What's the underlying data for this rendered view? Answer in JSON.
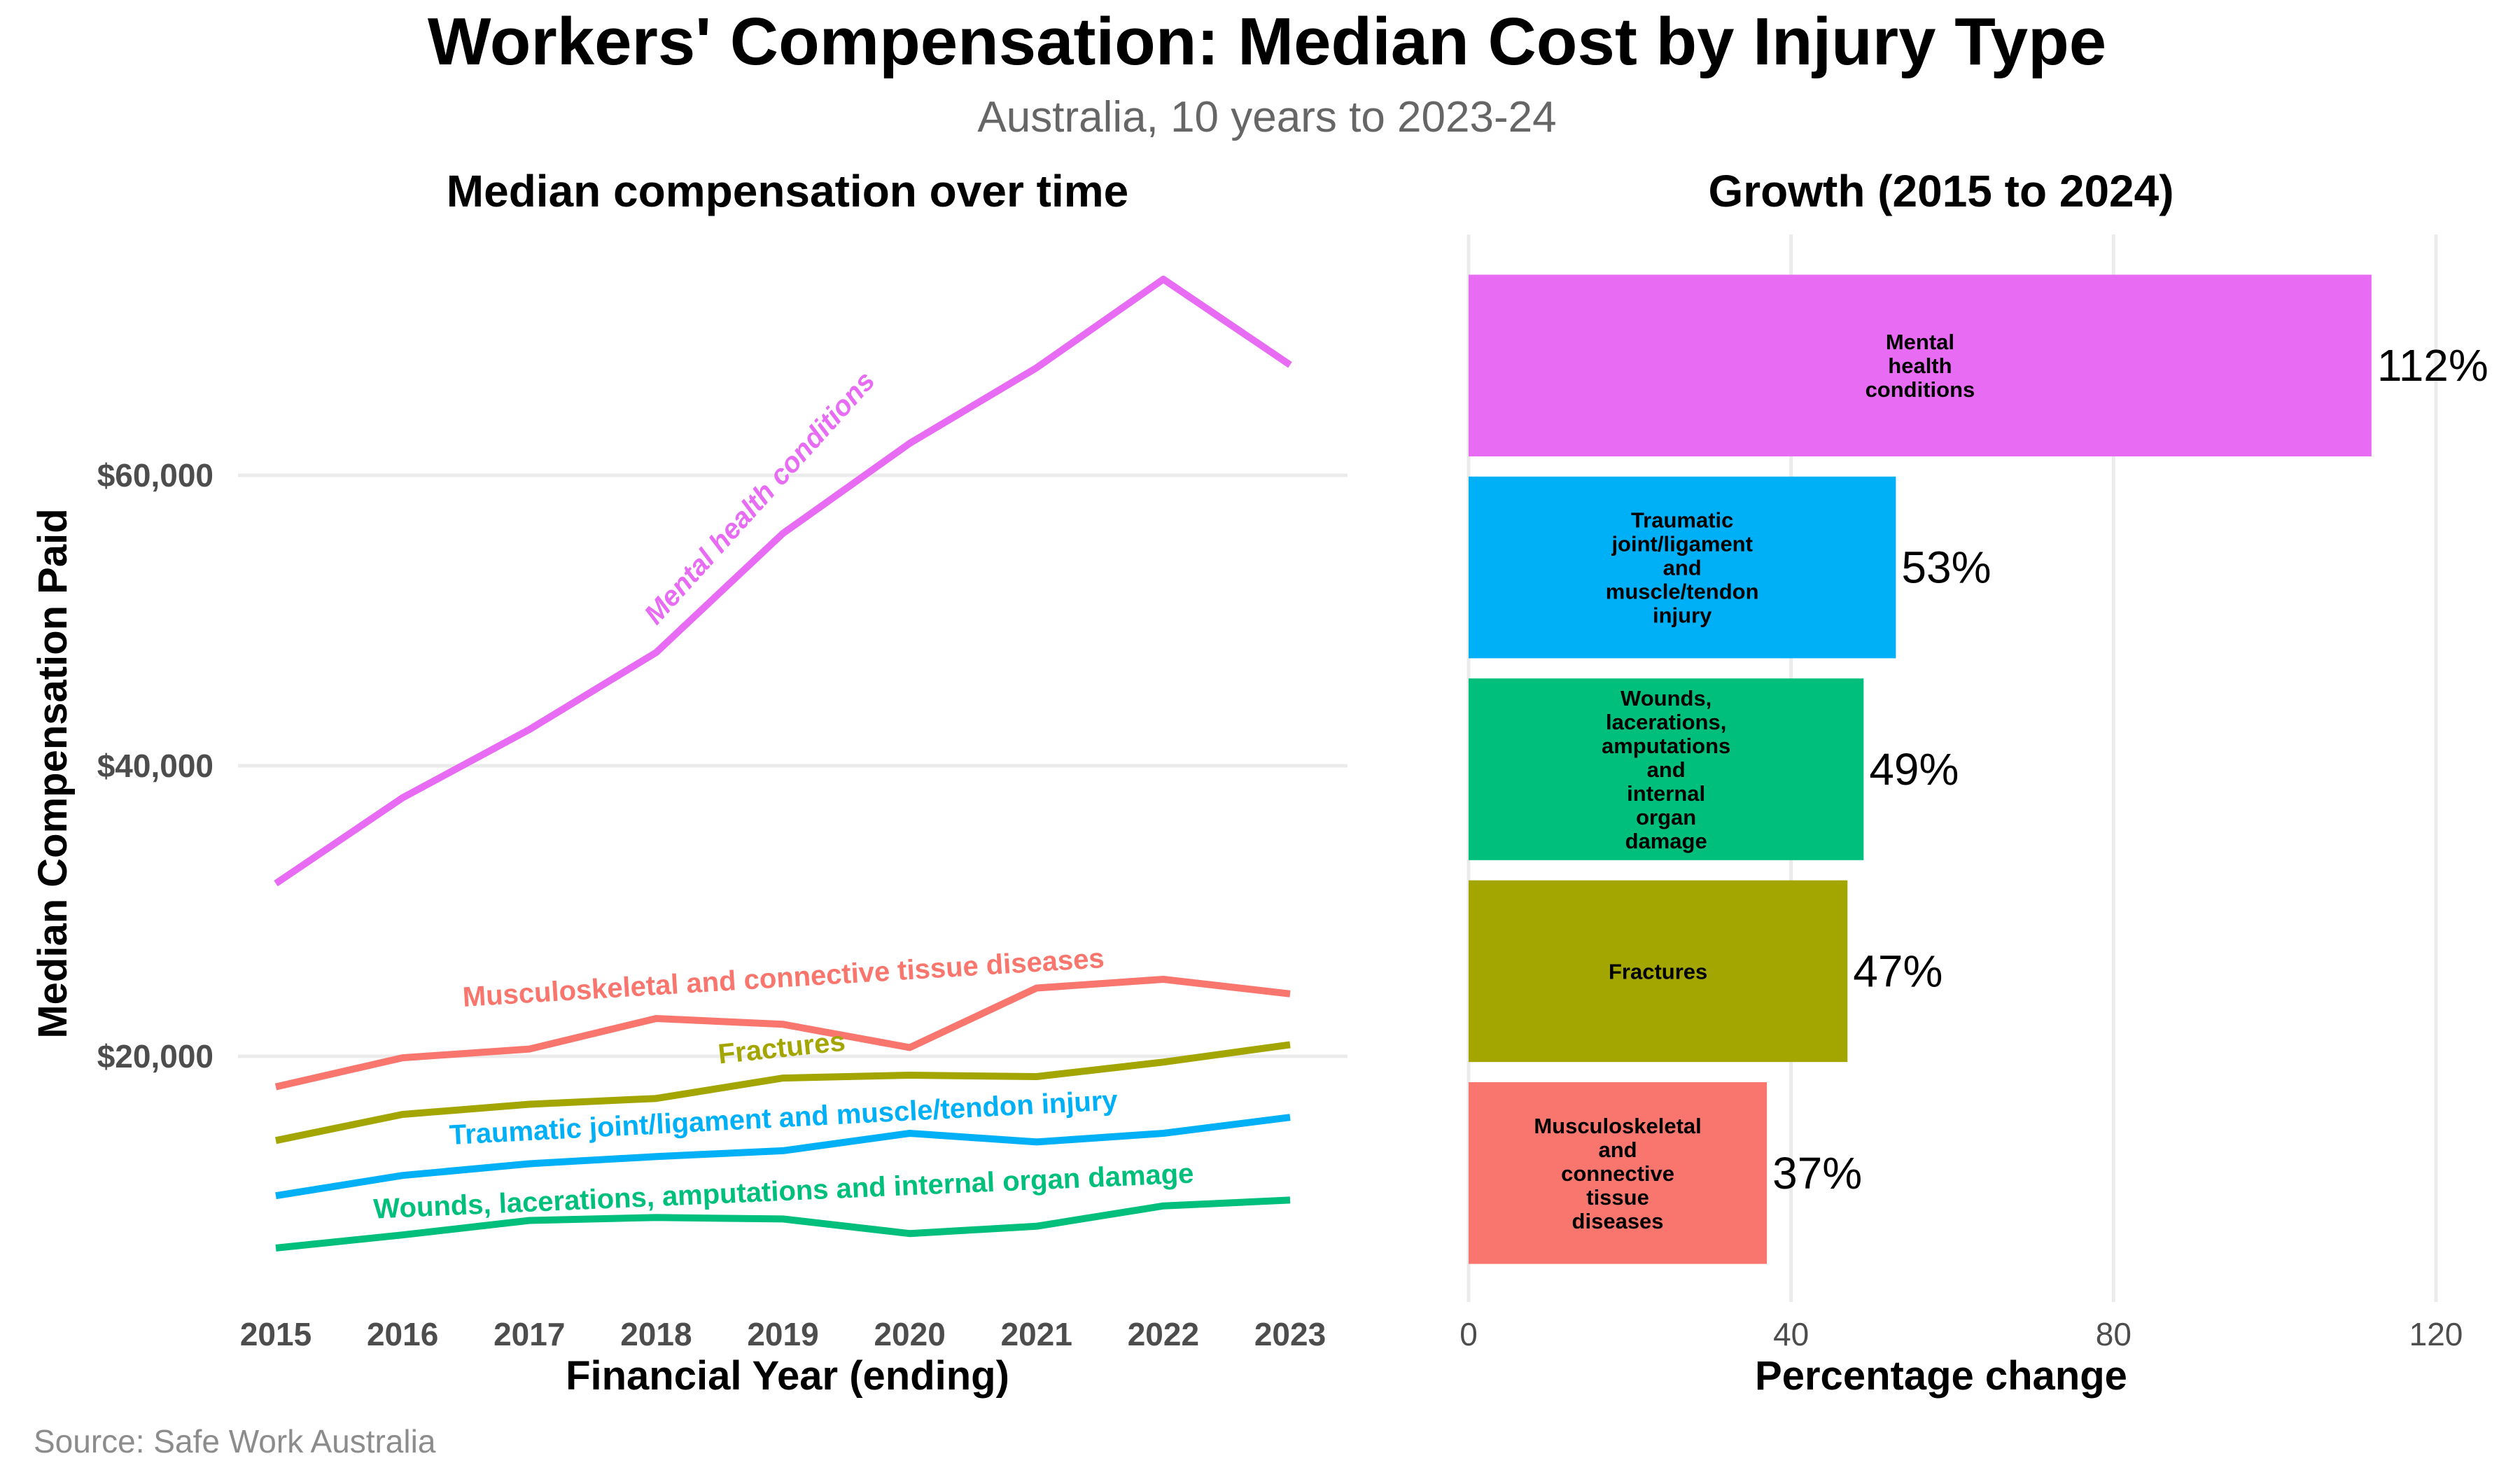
{
  "title": "Workers' Compensation: Median Cost by Injury Type",
  "subtitle": "Australia, 10 years to 2023-24",
  "caption": "Source: Safe Work Australia",
  "chart_data": [
    {
      "type": "line",
      "title": "Median compensation over time",
      "xlabel": "Financial Year (ending)",
      "ylabel": "Median Compensation Paid",
      "x": [
        2015,
        2016,
        2017,
        2018,
        2019,
        2020,
        2021,
        2022,
        2023
      ],
      "x_tick_labels": [
        "2015",
        "2016",
        "2017",
        "2018",
        "2019",
        "2020",
        "2021",
        "2022",
        "2023"
      ],
      "y_ticks": [
        20000,
        40000,
        60000
      ],
      "y_tick_labels": [
        "$20,000",
        "$40,000",
        "$60,000"
      ],
      "grid": true,
      "legend": "direct labels on lines",
      "series": [
        {
          "name": "Mental health conditions",
          "color": "#E76BF3",
          "values": [
            31900,
            37800,
            42500,
            47800,
            56000,
            62200,
            67400,
            73500,
            67600
          ]
        },
        {
          "name": "Musculoskeletal and connective tissue diseases",
          "color": "#F8766D",
          "values": [
            17900,
            19900,
            20500,
            22600,
            22200,
            20600,
            24700,
            25300,
            24300
          ]
        },
        {
          "name": "Fractures",
          "color": "#A3A500",
          "values": [
            14200,
            16000,
            16700,
            17100,
            18500,
            18700,
            18600,
            19600,
            20800
          ]
        },
        {
          "name": "Traumatic joint/ligament and muscle/tendon injury",
          "color": "#00B0F6",
          "values": [
            10400,
            11800,
            12600,
            13100,
            13500,
            14700,
            14100,
            14700,
            15800
          ]
        },
        {
          "name": "Wounds, lacerations, amputations and internal organ damage",
          "color": "#00BF7D",
          "values": [
            6800,
            7700,
            8700,
            8900,
            8800,
            7800,
            8300,
            9700,
            10100
          ]
        }
      ]
    },
    {
      "type": "bar",
      "orientation": "horizontal",
      "title": "Growth (2015 to 2024)",
      "xlabel": "Percentage change",
      "ylabel": "",
      "xlim": [
        0,
        125
      ],
      "x_ticks": [
        0,
        40,
        80,
        120
      ],
      "x_tick_labels": [
        "0",
        "40",
        "80",
        "120"
      ],
      "grid": true,
      "categories": [
        "Mental health conditions",
        "Traumatic joint/ligament and muscle/tendon injury",
        "Wounds, lacerations, amputations and internal organ damage",
        "Fractures",
        "Musculoskeletal and connective tissue diseases"
      ],
      "bar_label_lines": [
        [
          "Mental",
          "health",
          "conditions"
        ],
        [
          "Traumatic",
          "joint/ligament",
          "and",
          "muscle/tendon",
          "injury"
        ],
        [
          "Wounds,",
          "lacerations,",
          "amputations",
          "and",
          "internal",
          "organ",
          "damage"
        ],
        [
          "Fractures"
        ],
        [
          "Musculoskeletal",
          "and",
          "connective",
          "tissue",
          "diseases"
        ]
      ],
      "values": [
        112,
        53,
        49,
        47,
        37
      ],
      "value_labels": [
        "112%",
        "53%",
        "49%",
        "47%",
        "37%"
      ],
      "colors": [
        "#E76BF3",
        "#00B0F6",
        "#00BF7D",
        "#A3A500",
        "#F8766D"
      ]
    }
  ]
}
